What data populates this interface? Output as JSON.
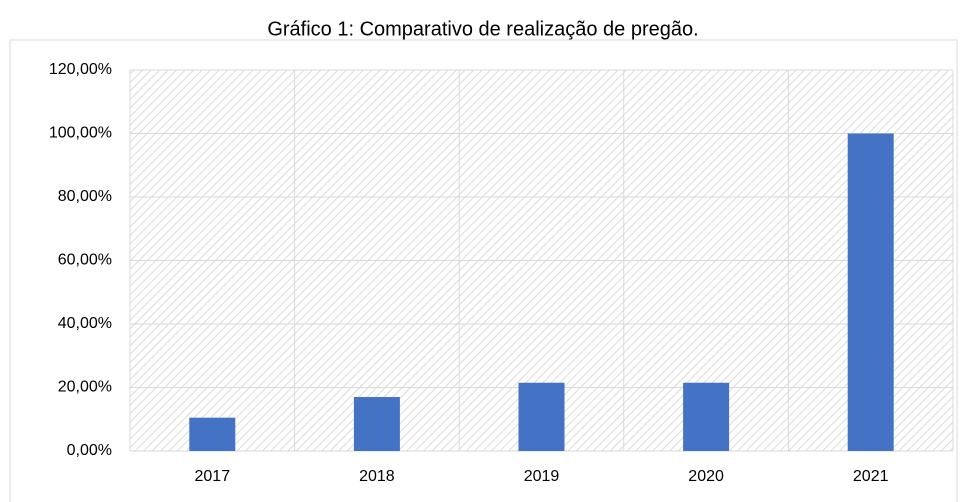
{
  "chart_data": {
    "type": "bar",
    "title": "Gráfico 1: Comparativo de realização de pregão.",
    "categories": [
      "2017",
      "2018",
      "2019",
      "2020",
      "2021"
    ],
    "values": [
      10.5,
      17,
      21.5,
      21.5,
      100
    ],
    "color": "#4472c4",
    "ylim": [
      0,
      120
    ],
    "yticks": [
      {
        "value": 0,
        "label": "0,00%"
      },
      {
        "value": 20,
        "label": "20,00%"
      },
      {
        "value": 40,
        "label": "40,00%"
      },
      {
        "value": 60,
        "label": "60,00%"
      },
      {
        "value": 80,
        "label": "80,00%"
      },
      {
        "value": 100,
        "label": "100,00%"
      },
      {
        "value": 120,
        "label": "120,00%"
      }
    ],
    "grid": true
  }
}
